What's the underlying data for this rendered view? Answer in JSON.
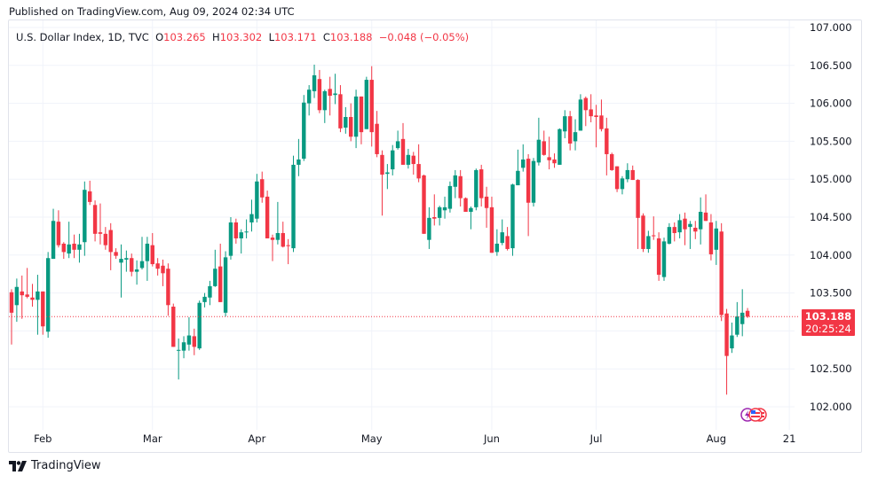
{
  "published": "Published on TradingView.com, Aug 09, 2024 02:34 UTC",
  "legend": {
    "symbol": "U.S. Dollar Index, 1D, TVC",
    "o_label": "O",
    "o_value": "103.265",
    "h_label": "H",
    "h_value": "103.302",
    "l_label": "L",
    "l_value": "103.171",
    "c_label": "C",
    "c_value": "103.188",
    "change": "−0.048 (−0.05%)"
  },
  "last_price": {
    "price": "103.188",
    "countdown": "20:25:24"
  },
  "footer": {
    "brand": "TradingView"
  },
  "colors": {
    "up": "#089981",
    "down": "#f23645",
    "grid": "#f0f3fa",
    "text": "#131722"
  },
  "event_icons": [
    "lightning-event-icon",
    "us-flag-event-icon",
    "us-flag-event-icon"
  ],
  "chart_data": {
    "type": "candlestick",
    "title": "U.S. Dollar Index, 1D, TVC",
    "ylim": [
      101.75,
      107.1
    ],
    "yticks": [
      "107.000",
      "106.500",
      "106.000",
      "105.500",
      "105.000",
      "104.500",
      "104.000",
      "103.500",
      "103.000",
      "102.500",
      "102.000"
    ],
    "xticks": [
      {
        "label": "Feb",
        "bar": 6
      },
      {
        "label": "Mar",
        "bar": 27
      },
      {
        "label": "Apr",
        "bar": 47
      },
      {
        "label": "May",
        "bar": 69
      },
      {
        "label": "Jun",
        "bar": 92
      },
      {
        "label": "Jul",
        "bar": 112
      },
      {
        "label": "Aug",
        "bar": 135
      },
      {
        "label": "21",
        "bar": 149
      }
    ],
    "grid": true,
    "last_close": 103.188,
    "ohlc": [
      [
        103.51,
        103.55,
        102.82,
        103.24
      ],
      [
        103.34,
        103.69,
        103.12,
        103.58
      ],
      [
        103.52,
        103.73,
        103.16,
        103.47
      ],
      [
        103.48,
        103.83,
        103.43,
        103.45
      ],
      [
        103.44,
        103.62,
        103.32,
        103.41
      ],
      [
        103.41,
        103.74,
        102.95,
        103.52
      ],
      [
        103.52,
        103.52,
        102.95,
        103.06
      ],
      [
        102.99,
        104.04,
        102.91,
        103.96
      ],
      [
        103.95,
        104.61,
        103.95,
        104.45
      ],
      [
        104.44,
        104.59,
        104.1,
        104.13
      ],
      [
        104.15,
        104.17,
        103.95,
        104.04
      ],
      [
        104.02,
        104.44,
        103.96,
        104.14
      ],
      [
        104.15,
        104.27,
        103.96,
        104.07
      ],
      [
        104.07,
        104.28,
        103.9,
        104.14
      ],
      [
        104.17,
        104.97,
        103.99,
        104.86
      ],
      [
        104.84,
        104.98,
        104.66,
        104.7
      ],
      [
        104.66,
        104.72,
        104.18,
        104.28
      ],
      [
        104.3,
        104.68,
        104.14,
        104.28
      ],
      [
        104.28,
        104.37,
        104.07,
        104.13
      ],
      [
        104.33,
        104.42,
        103.8,
        104.04
      ],
      [
        104.04,
        104.09,
        103.95,
        103.99
      ],
      [
        103.9,
        104.14,
        103.44,
        103.95
      ],
      [
        103.94,
        104.06,
        103.78,
        103.96
      ],
      [
        103.96,
        104.02,
        103.72,
        103.78
      ],
      [
        103.78,
        103.93,
        103.61,
        103.81
      ],
      [
        103.83,
        104.24,
        103.81,
        103.92
      ],
      [
        103.92,
        104.24,
        103.66,
        104.15
      ],
      [
        104.13,
        104.29,
        103.85,
        103.88
      ],
      [
        103.89,
        103.96,
        103.73,
        103.82
      ],
      [
        103.86,
        103.94,
        103.59,
        103.76
      ],
      [
        103.82,
        103.89,
        103.2,
        103.34
      ],
      [
        103.32,
        103.36,
        102.79,
        102.79
      ],
      [
        102.74,
        102.9,
        102.36,
        102.75
      ],
      [
        102.74,
        102.93,
        102.64,
        102.85
      ],
      [
        102.82,
        103.18,
        102.74,
        102.94
      ],
      [
        102.93,
        103.03,
        102.68,
        102.79
      ],
      [
        102.77,
        103.4,
        102.75,
        103.37
      ],
      [
        103.38,
        103.5,
        103.31,
        103.45
      ],
      [
        103.44,
        103.66,
        103.34,
        103.59
      ],
      [
        103.59,
        104.07,
        103.58,
        103.82
      ],
      [
        103.85,
        104.15,
        103.38,
        103.38
      ],
      [
        103.24,
        104.05,
        103.19,
        103.97
      ],
      [
        103.99,
        104.5,
        103.94,
        104.43
      ],
      [
        104.43,
        104.48,
        104.15,
        104.22
      ],
      [
        104.22,
        104.34,
        104.02,
        104.3
      ],
      [
        104.3,
        104.47,
        104.22,
        104.31
      ],
      [
        104.43,
        104.73,
        104.31,
        104.54
      ],
      [
        104.48,
        105.07,
        104.43,
        104.97
      ],
      [
        105.0,
        105.1,
        104.69,
        104.76
      ],
      [
        104.77,
        104.85,
        104.22,
        104.22
      ],
      [
        104.23,
        104.27,
        103.92,
        104.2
      ],
      [
        104.2,
        104.7,
        104.14,
        104.29
      ],
      [
        104.29,
        104.44,
        104.1,
        104.11
      ],
      [
        104.13,
        104.21,
        103.88,
        104.12
      ],
      [
        104.09,
        105.31,
        104.04,
        105.19
      ],
      [
        105.19,
        105.53,
        105.04,
        105.26
      ],
      [
        105.27,
        106.11,
        105.24,
        106.01
      ],
      [
        106.0,
        106.24,
        105.84,
        106.18
      ],
      [
        106.16,
        106.51,
        106.07,
        106.37
      ],
      [
        106.32,
        106.44,
        105.87,
        105.91
      ],
      [
        105.91,
        106.18,
        105.74,
        106.16
      ],
      [
        106.19,
        106.35,
        105.84,
        106.1
      ],
      [
        106.11,
        106.39,
        105.99,
        106.13
      ],
      [
        106.12,
        106.24,
        105.62,
        105.67
      ],
      [
        105.68,
        105.95,
        105.6,
        105.82
      ],
      [
        105.82,
        106.0,
        105.5,
        105.56
      ],
      [
        105.56,
        106.18,
        105.41,
        106.09
      ],
      [
        106.09,
        106.09,
        105.46,
        105.62
      ],
      [
        105.66,
        106.35,
        105.66,
        106.31
      ],
      [
        106.31,
        106.49,
        105.43,
        105.62
      ],
      [
        105.73,
        105.9,
        105.29,
        105.33
      ],
      [
        105.32,
        105.38,
        104.52,
        105.06
      ],
      [
        105.07,
        105.2,
        104.87,
        105.09
      ],
      [
        105.13,
        105.45,
        105.05,
        105.38
      ],
      [
        105.41,
        105.64,
        105.39,
        105.5
      ],
      [
        105.53,
        105.74,
        105.19,
        105.19
      ],
      [
        105.19,
        105.4,
        105.14,
        105.32
      ],
      [
        105.31,
        105.36,
        105.06,
        105.2
      ],
      [
        105.2,
        105.46,
        104.96,
        105.01
      ],
      [
        105.05,
        105.06,
        104.28,
        104.28
      ],
      [
        104.2,
        104.63,
        104.08,
        104.49
      ],
      [
        104.5,
        104.8,
        104.39,
        104.48
      ],
      [
        104.49,
        104.65,
        104.39,
        104.63
      ],
      [
        104.59,
        104.77,
        104.48,
        104.63
      ],
      [
        104.61,
        104.97,
        104.56,
        104.91
      ],
      [
        104.9,
        105.12,
        104.75,
        105.05
      ],
      [
        105.04,
        105.12,
        104.64,
        104.75
      ],
      [
        104.75,
        104.76,
        104.57,
        104.57
      ],
      [
        104.57,
        104.64,
        104.34,
        104.62
      ],
      [
        104.63,
        105.14,
        104.59,
        105.12
      ],
      [
        105.13,
        105.19,
        104.64,
        104.75
      ],
      [
        104.77,
        104.9,
        104.36,
        104.62
      ],
      [
        104.63,
        104.77,
        104.03,
        104.03
      ],
      [
        104.04,
        104.34,
        103.99,
        104.15
      ],
      [
        104.16,
        104.47,
        104.13,
        104.3
      ],
      [
        104.25,
        104.37,
        104.06,
        104.08
      ],
      [
        104.09,
        104.94,
        103.99,
        104.93
      ],
      [
        104.92,
        105.39,
        104.92,
        105.11
      ],
      [
        105.15,
        105.46,
        105.1,
        105.26
      ],
      [
        105.27,
        105.33,
        104.25,
        104.69
      ],
      [
        104.69,
        105.28,
        104.64,
        105.24
      ],
      [
        105.22,
        105.81,
        105.18,
        105.52
      ],
      [
        105.5,
        105.64,
        105.31,
        105.32
      ],
      [
        105.29,
        105.56,
        105.13,
        105.25
      ],
      [
        105.26,
        105.34,
        105.15,
        105.21
      ],
      [
        105.19,
        105.67,
        105.19,
        105.66
      ],
      [
        105.63,
        105.91,
        105.54,
        105.83
      ],
      [
        105.83,
        105.9,
        105.38,
        105.47
      ],
      [
        105.5,
        105.79,
        105.38,
        105.62
      ],
      [
        105.64,
        106.12,
        105.64,
        106.05
      ],
      [
        106.07,
        106.09,
        105.7,
        105.91
      ],
      [
        105.92,
        106.12,
        105.75,
        105.83
      ],
      [
        105.84,
        105.98,
        105.42,
        105.82
      ],
      [
        105.84,
        106.05,
        105.63,
        105.66
      ],
      [
        105.67,
        105.81,
        105.05,
        105.33
      ],
      [
        105.33,
        105.35,
        105.11,
        105.12
      ],
      [
        105.17,
        105.17,
        104.83,
        104.87
      ],
      [
        104.87,
        105.04,
        104.8,
        105.01
      ],
      [
        105.0,
        105.21,
        104.96,
        105.12
      ],
      [
        105.12,
        105.18,
        104.99,
        104.99
      ],
      [
        104.99,
        105.0,
        104.08,
        104.49
      ],
      [
        104.52,
        104.55,
        104.04,
        104.08
      ],
      [
        104.08,
        104.32,
        104.03,
        104.25
      ],
      [
        104.26,
        104.51,
        104.2,
        104.25
      ],
      [
        104.22,
        104.3,
        103.66,
        103.74
      ],
      [
        103.71,
        104.23,
        103.66,
        104.18
      ],
      [
        104.15,
        104.42,
        104.14,
        104.37
      ],
      [
        104.37,
        104.43,
        104.18,
        104.29
      ],
      [
        104.3,
        104.54,
        104.22,
        104.46
      ],
      [
        104.48,
        104.56,
        104.13,
        104.34
      ],
      [
        104.37,
        104.45,
        104.08,
        104.41
      ],
      [
        104.36,
        104.45,
        104.21,
        104.31
      ],
      [
        104.34,
        104.76,
        104.14,
        104.57
      ],
      [
        104.56,
        104.8,
        104.45,
        104.45
      ],
      [
        104.43,
        104.54,
        103.93,
        104.01
      ],
      [
        104.07,
        104.45,
        103.87,
        104.35
      ],
      [
        104.31,
        104.42,
        103.13,
        103.21
      ],
      [
        103.23,
        103.29,
        102.16,
        102.67
      ],
      [
        102.77,
        103.11,
        102.71,
        102.94
      ],
      [
        102.95,
        103.38,
        102.92,
        103.19
      ],
      [
        103.09,
        103.55,
        102.93,
        103.24
      ],
      [
        103.265,
        103.302,
        103.171,
        103.188
      ]
    ]
  }
}
